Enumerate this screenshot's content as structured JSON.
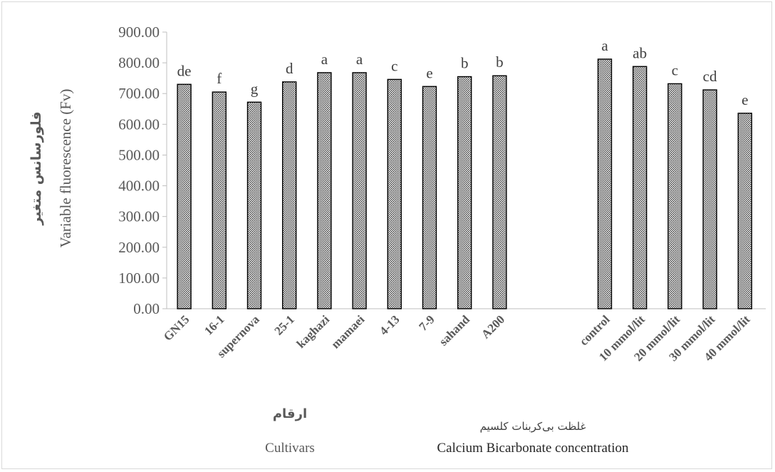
{
  "chart_data": {
    "type": "bar",
    "y_title_fa": "فلورسانس متغیر",
    "y_title_en": "Variable fluorescence (Fv)",
    "ylim": [
      0,
      900
    ],
    "y_ticks": [
      "0.00",
      "100.00",
      "200.00",
      "300.00",
      "400.00",
      "500.00",
      "600.00",
      "700.00",
      "800.00",
      "900.00"
    ],
    "grid": false,
    "groups": [
      {
        "title_fa": "ارقام",
        "title_en": "Cultivars",
        "categories": [
          "GN15",
          "16-1",
          "supernova",
          "25-1",
          "kaghazi",
          "mamaei",
          "4-13",
          "7-9",
          "sahand",
          "A200"
        ],
        "values": [
          730,
          705,
          672,
          738,
          768,
          768,
          746,
          723,
          755,
          758
        ],
        "letters": [
          "de",
          "f",
          "g",
          "d",
          "a",
          "a",
          "c",
          "e",
          "b",
          "b"
        ]
      },
      {
        "title_fa": "غلظت بی‌کربنات کلسیم",
        "title_en": "Calcium Bicarbonate concentration",
        "categories": [
          "control",
          "10 mmol/lit",
          "20 mmol/lit",
          "30 mmol/lit",
          "40 mmol/lit"
        ],
        "values": [
          812,
          788,
          732,
          712,
          636
        ],
        "letters": [
          "a",
          "ab",
          "c",
          "cd",
          "e"
        ]
      }
    ],
    "bar_color": "#4a4a4a"
  }
}
